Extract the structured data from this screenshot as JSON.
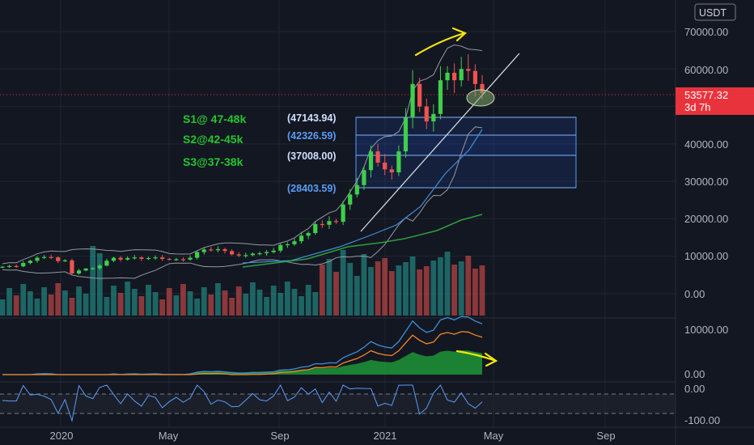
{
  "header": {
    "currency_button": "USDT"
  },
  "price_axis": {
    "ticks": [
      "70000.00",
      "60000.00",
      "50000.00",
      "40000.00",
      "30000.00",
      "20000.00",
      "10000.00",
      "0.00"
    ],
    "last_price": "53577.32",
    "countdown": "3d 7h"
  },
  "macd_axis": {
    "ticks": [
      "10000.00",
      "0.00"
    ]
  },
  "rsi_axis": {
    "ticks": [
      "0.00",
      "-100.00"
    ]
  },
  "time_axis": {
    "labels": [
      "2020",
      "May",
      "Sep",
      "2021",
      "May",
      "Sep"
    ]
  },
  "annotations": {
    "supports": [
      "S1@ 47-48k",
      "S2@42-45k",
      "S3@37-38k"
    ],
    "levels": [
      "(47143.94)",
      "(42326.59)",
      "(37008.00)",
      "(28403.59)"
    ]
  },
  "colors": {
    "background": "#131722",
    "up": "#26a69a",
    "down": "#ef5350",
    "support_text": "#26c52f",
    "level_text": "#5b9cf6",
    "arrow": "#f5e60a",
    "price_tag": "#e8333c"
  },
  "chart_data": {
    "type": "candlestick",
    "interval": "weekly",
    "x_labels": [
      "2020",
      "May",
      "Sep",
      "2021",
      "May",
      "Sep"
    ],
    "ylim": [
      0,
      70000
    ],
    "y_ticks": [
      0,
      10000,
      20000,
      30000,
      40000,
      50000,
      60000,
      70000
    ],
    "last_price": 53577.32,
    "support_levels": [
      47143.94,
      42326.59,
      37008.0,
      28403.59
    ],
    "support_zones_k": [
      "47-48k",
      "42-45k",
      "37-38k"
    ],
    "candles_close": [
      7200,
      7400,
      7300,
      8200,
      8800,
      9600,
      9800,
      9700,
      8700,
      8900,
      5400,
      6200,
      6700,
      6800,
      7500,
      8800,
      9600,
      9100,
      9500,
      9700,
      9300,
      9500,
      9700,
      9300,
      9200,
      9200,
      9100,
      9600,
      11100,
      11800,
      11600,
      11900,
      11400,
      10500,
      10200,
      10300,
      10700,
      10800,
      11100,
      11500,
      13000,
      13200,
      14000,
      15500,
      16200,
      18600,
      18400,
      19400,
      19200,
      23800,
      26500,
      29000,
      33000,
      38000,
      35000,
      33200,
      32400,
      38000,
      47000,
      56000,
      50000,
      46000,
      48000,
      57000,
      59000,
      57000,
      60000,
      59500,
      56000,
      53577
    ],
    "macd_ylim": [
      0,
      12000
    ],
    "macd_ticks": [
      0,
      10000
    ],
    "rsi_ticks": [
      0,
      -100
    ]
  }
}
